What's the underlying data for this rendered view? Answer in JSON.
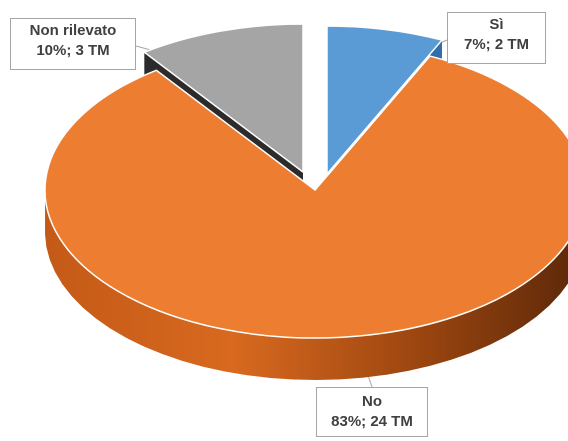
{
  "chart_data": {
    "type": "pie",
    "style": "3d-exploded",
    "title": "",
    "slices": [
      {
        "label": "Sì",
        "percent": 7,
        "count": 2,
        "value_text": "7%; 2 TM",
        "color": "#5b9bd5"
      },
      {
        "label": "No",
        "percent": 83,
        "count": 24,
        "value_text": "83%; 24 TM",
        "color": "#ed7d31"
      },
      {
        "label": "Non rilevato",
        "percent": 10,
        "count": 3,
        "value_text": "10%; 3 TM",
        "color": "#a5a5a5"
      }
    ],
    "legend": "none",
    "data_labels": "callouts"
  }
}
